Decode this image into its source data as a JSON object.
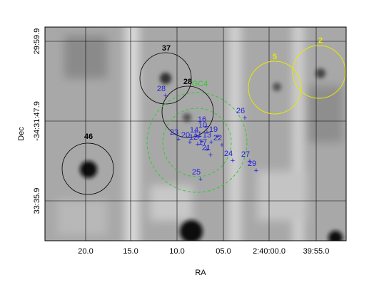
{
  "xlabel": "RA",
  "ylabel": "Dec",
  "xticks": [
    "20.0",
    "15.0",
    "10.0",
    "05.0",
    "2:40:00.0",
    "39:55.0"
  ],
  "yticks": [
    "29:59.9",
    "-34:31:47.9",
    "33:35.9"
  ],
  "black_regions": [
    "46",
    "37",
    "28"
  ],
  "yellow_regions": [
    "5",
    "2"
  ],
  "green_region": "GC4",
  "sources": [
    "28",
    "26",
    "16",
    "10",
    "23",
    "14",
    "19",
    "20",
    "11",
    "12",
    "13",
    "22",
    "17",
    "21",
    "24",
    "27",
    "29",
    "25"
  ]
}
